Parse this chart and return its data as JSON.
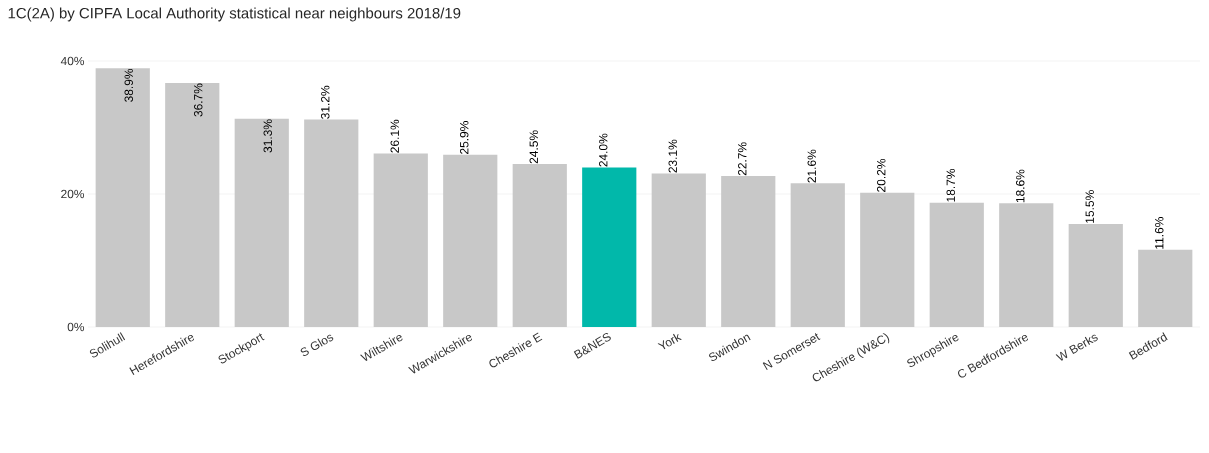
{
  "chart_data": {
    "type": "bar",
    "title": "1C(2A) by CIPFA Local Authority statistical near neighbours 2018/19",
    "categories": [
      "Solihull",
      "Herefordshire",
      "Stockport",
      "S Glos",
      "Wiltshire",
      "Warwickshire",
      "Cheshire E",
      "B&NES",
      "York",
      "Swindon",
      "N Somerset",
      "Cheshire (W&C)",
      "Shropshire",
      "C Bedfordshire",
      "W Berks",
      "Bedford"
    ],
    "values": [
      38.9,
      36.7,
      31.3,
      31.2,
      26.1,
      25.9,
      24.5,
      24.0,
      23.1,
      22.7,
      21.6,
      20.2,
      18.7,
      18.6,
      15.5,
      11.6
    ],
    "value_labels": [
      "38.9%",
      "36.7%",
      "31.3%",
      "31.2%",
      "26.1%",
      "25.9%",
      "24.5%",
      "24.0%",
      "23.1%",
      "22.7%",
      "21.6%",
      "20.2%",
      "18.7%",
      "18.6%",
      "15.5%",
      "11.6%"
    ],
    "colors": [
      "#c8c8c8",
      "#c8c8c8",
      "#c8c8c8",
      "#c8c8c8",
      "#c8c8c8",
      "#c8c8c8",
      "#c8c8c8",
      "#01b8aa",
      "#c8c8c8",
      "#c8c8c8",
      "#c8c8c8",
      "#c8c8c8",
      "#c8c8c8",
      "#c8c8c8",
      "#c8c8c8",
      "#c8c8c8"
    ],
    "ylim": [
      0,
      40
    ],
    "yticks": [
      {
        "value": 0,
        "label": "0%"
      },
      {
        "value": 20,
        "label": "20%"
      },
      {
        "value": 40,
        "label": "40%"
      }
    ],
    "grid": "y"
  }
}
